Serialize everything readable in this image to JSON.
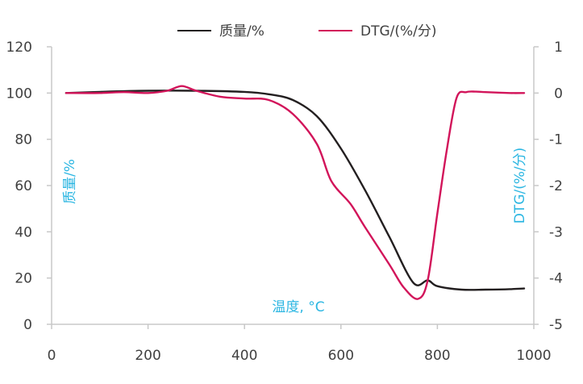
{
  "chart_data": {
    "type": "line",
    "xlabel": "温度, °C",
    "ylabel": "质量/%",
    "y2label": "DTG/(%/分)",
    "xlim": [
      0,
      1000
    ],
    "ylim": [
      0,
      120
    ],
    "y2lim": [
      -5,
      1
    ],
    "x_ticks": [
      "0",
      "200",
      "400",
      "600",
      "800",
      "1000"
    ],
    "y_ticks": [
      "0",
      "20",
      "40",
      "60",
      "80",
      "100",
      "120"
    ],
    "y2_ticks": [
      "-5",
      "-4",
      "-3",
      "-2",
      "-1",
      "0",
      "1"
    ],
    "grid": false,
    "legend_position": "top",
    "series": [
      {
        "name": "质量/%",
        "axis": "left",
        "color": "#231f20",
        "x": [
          30,
          100,
          200,
          300,
          400,
          450,
          500,
          550,
          600,
          650,
          700,
          750,
          780,
          800,
          850,
          900,
          950,
          980
        ],
        "y": [
          100,
          100.5,
          101,
          101,
          100.5,
          99.5,
          97,
          90,
          76,
          58,
          38,
          18,
          19,
          16.5,
          15,
          15,
          15.2,
          15.5
        ]
      },
      {
        "name": "DTG/(%/分)",
        "axis": "right",
        "color": "#d2145a",
        "x": [
          30,
          100,
          150,
          200,
          240,
          270,
          300,
          350,
          400,
          450,
          500,
          550,
          580,
          620,
          650,
          700,
          730,
          760,
          780,
          800,
          820,
          840,
          860,
          880,
          900,
          950,
          980
        ],
        "y": [
          0,
          0,
          0.02,
          0,
          0.05,
          0.15,
          0.05,
          -0.08,
          -0.12,
          -0.15,
          -0.45,
          -1.1,
          -1.9,
          -2.4,
          -2.9,
          -3.7,
          -4.2,
          -4.45,
          -4.05,
          -2.6,
          -1.2,
          -0.1,
          0.02,
          0.03,
          0.02,
          0,
          0
        ]
      }
    ]
  }
}
